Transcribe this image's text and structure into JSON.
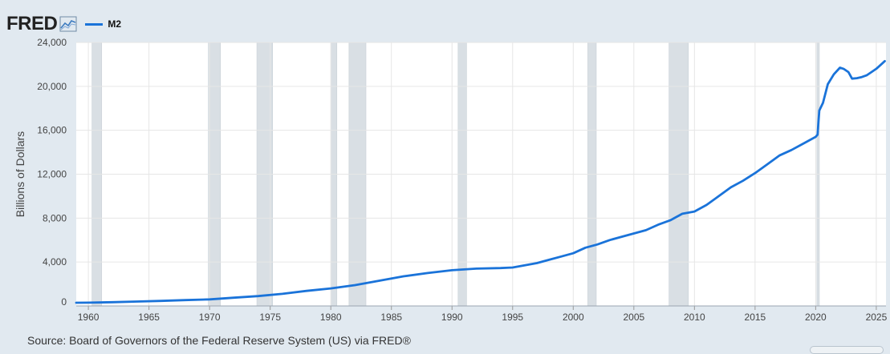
{
  "brand": {
    "name": "FRED",
    "icon": "trend-line-icon"
  },
  "legend": [
    {
      "label": "M2",
      "color": "#1a73d9"
    }
  ],
  "source_text": "Source: Board of Governors of the Federal Reserve System (US) via FRED®",
  "colors": {
    "series": "#1a73d9",
    "recession_band": "#d9dfe4",
    "plot_background": "#ffffff",
    "page_background": "#e1e9f0",
    "gridline": "#e6e6e6"
  },
  "chart_data": {
    "type": "line",
    "title": "",
    "ylabel": "Billions of Dollars",
    "xlabel": "",
    "xlim": [
      1959.0,
      2025.8
    ],
    "ylim": [
      0,
      24000
    ],
    "y_ticks": [
      0,
      4000,
      8000,
      12000,
      16000,
      20000,
      24000
    ],
    "y_tick_labels": [
      "0",
      "4,000",
      "8,000",
      "12,000",
      "16,000",
      "20,000",
      "24,000"
    ],
    "x_ticks": [
      1960,
      1965,
      1970,
      1975,
      1980,
      1985,
      1990,
      1995,
      2000,
      2005,
      2010,
      2015,
      2020,
      2025
    ],
    "x_tick_labels": [
      "1960",
      "1965",
      "1970",
      "1975",
      "1980",
      "1985",
      "1990",
      "1995",
      "2000",
      "2005",
      "2010",
      "2015",
      "2020",
      "2025"
    ],
    "grid": {
      "x": true,
      "y": true
    },
    "recessions": [
      [
        1960.3,
        1961.1
      ],
      [
        1969.9,
        1970.9
      ],
      [
        1973.9,
        1975.2
      ],
      [
        1980.0,
        1980.5
      ],
      [
        1981.5,
        1982.9
      ],
      [
        1990.5,
        1991.2
      ],
      [
        2001.2,
        2001.9
      ],
      [
        2007.9,
        2009.5
      ],
      [
        2020.1,
        2020.3
      ]
    ],
    "series": [
      {
        "name": "M2",
        "x": [
          1959.0,
          1960,
          1962,
          1964,
          1966,
          1968,
          1970,
          1972,
          1974,
          1976,
          1978,
          1980,
          1982,
          1984,
          1986,
          1988,
          1990,
          1992,
          1994,
          1995,
          1996,
          1997,
          1998,
          1999,
          2000,
          2001,
          2002,
          2003,
          2004,
          2005,
          2006,
          2007,
          2008,
          2009,
          2010,
          2011,
          2012,
          2013,
          2014,
          2015,
          2016,
          2017,
          2018,
          2019,
          2020.0,
          2020.15,
          2020.3,
          2020.6,
          2021.0,
          2021.5,
          2022.0,
          2022.3,
          2022.7,
          2023.0,
          2023.4,
          2023.8,
          2024.2,
          2024.6,
          2025.0,
          2025.4,
          2025.7
        ],
        "values": [
          290,
          300,
          340,
          400,
          460,
          530,
          600,
          750,
          900,
          1100,
          1370,
          1600,
          1900,
          2300,
          2700,
          3000,
          3250,
          3400,
          3450,
          3500,
          3700,
          3900,
          4200,
          4500,
          4800,
          5300,
          5600,
          6000,
          6300,
          6600,
          6900,
          7400,
          7800,
          8400,
          8600,
          9200,
          10000,
          10800,
          11400,
          12100,
          12900,
          13700,
          14200,
          14800,
          15400,
          15600,
          17800,
          18500,
          20200,
          21100,
          21700,
          21600,
          21300,
          20700,
          20750,
          20850,
          21000,
          21300,
          21600,
          22000,
          22300
        ]
      }
    ]
  }
}
